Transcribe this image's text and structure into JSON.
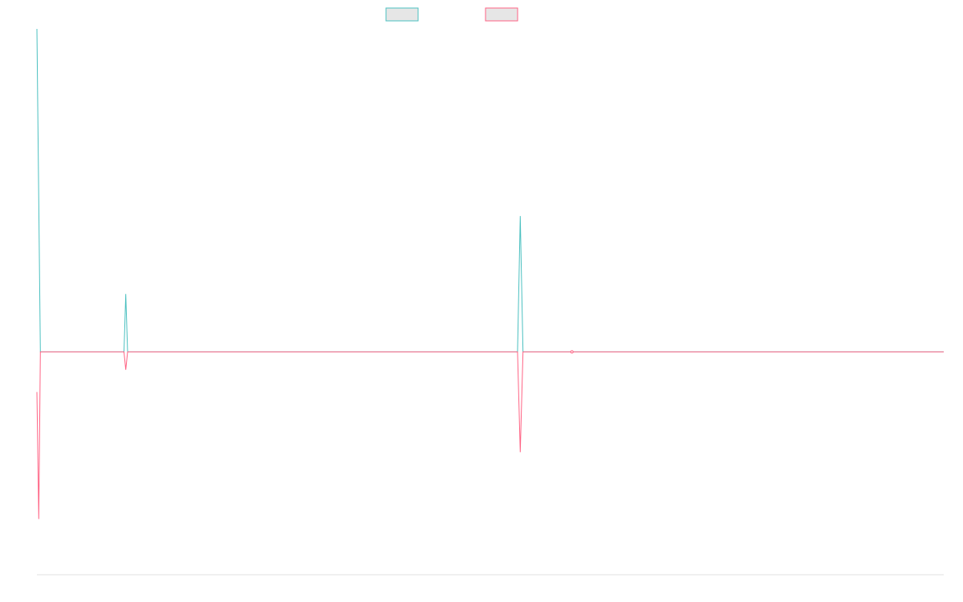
{
  "colors": {
    "series_a": "#4bc0c0",
    "series_b": "#ff6384",
    "swatch_fill": "#e6e6e6",
    "axis": "#e0e0e0"
  },
  "chart_data": {
    "type": "line",
    "title": "",
    "xlabel": "",
    "ylabel": "",
    "legend": {
      "placement": "top-center",
      "entries": [
        "",
        ""
      ]
    },
    "grid": false,
    "xlim": [
      0,
      100
    ],
    "ylim": [
      -1,
      1.45
    ],
    "series": [
      {
        "color": "#4bc0c0",
        "points": [
          [
            0.0,
            1.45
          ],
          [
            0.38,
            0.0
          ],
          [
            9.6,
            0.0
          ],
          [
            9.8,
            0.26
          ],
          [
            10.0,
            0.0
          ],
          [
            53.0,
            0.0
          ],
          [
            53.3,
            0.61
          ],
          [
            53.6,
            0.0
          ],
          [
            100.0,
            0.0
          ]
        ]
      },
      {
        "color": "#ff6384",
        "points": [
          [
            0.0,
            -0.18
          ],
          [
            0.2,
            -0.75
          ],
          [
            0.38,
            0.0
          ],
          [
            9.6,
            0.0
          ],
          [
            9.8,
            -0.08
          ],
          [
            10.0,
            0.0
          ],
          [
            53.0,
            0.0
          ],
          [
            53.3,
            -0.45
          ],
          [
            53.6,
            0.0
          ],
          [
            59.0,
            0.0
          ],
          [
            100.0,
            0.0
          ]
        ]
      }
    ]
  }
}
